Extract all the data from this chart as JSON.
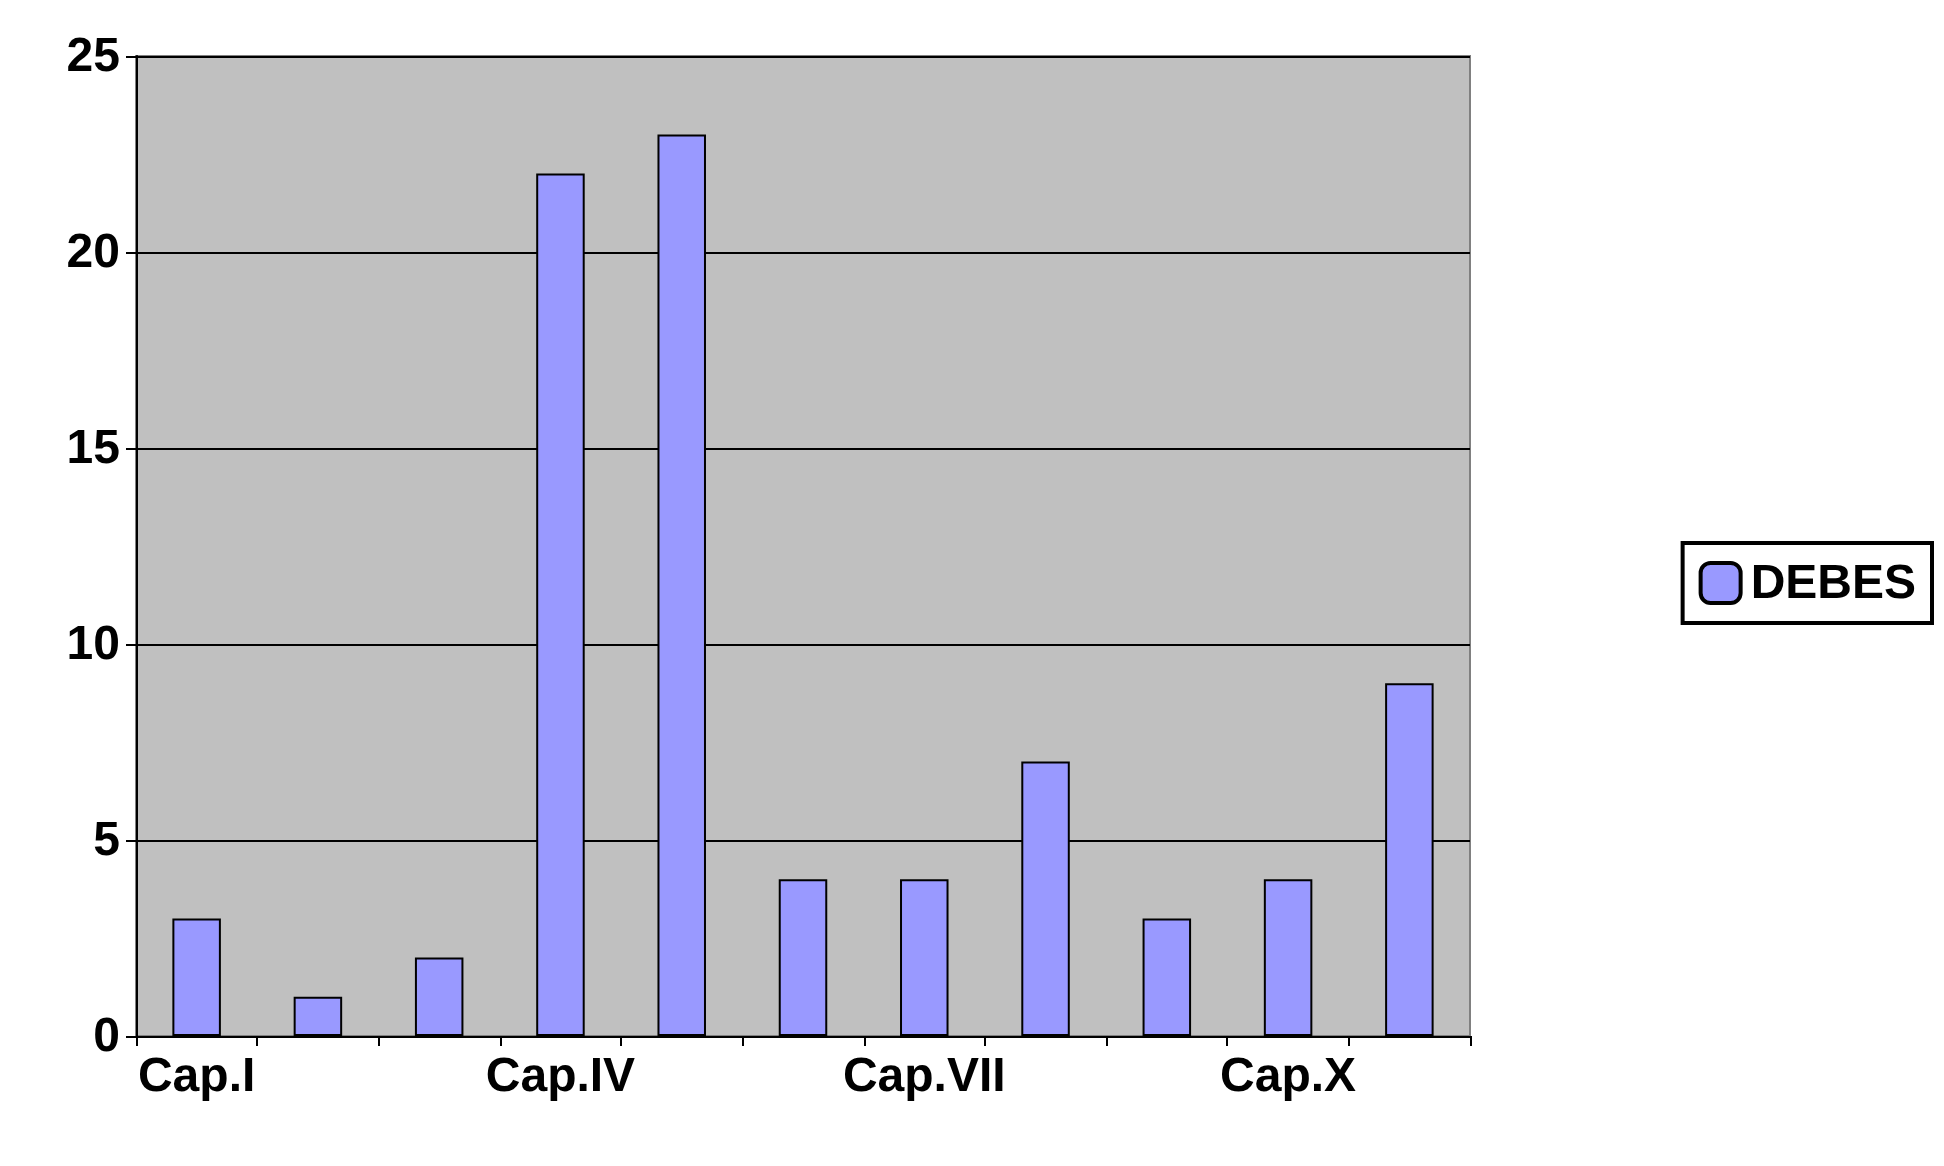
{
  "chart_data": {
    "type": "bar",
    "categories": [
      "Cap.I",
      null,
      null,
      "Cap.IV",
      null,
      null,
      "Cap.VII",
      null,
      null,
      "Cap.X",
      null
    ],
    "series": [
      {
        "name": "DEBES",
        "color": "#9999ff",
        "values": [
          3,
          1,
          2,
          22,
          23,
          4,
          4,
          7,
          3,
          4,
          9
        ]
      }
    ],
    "ylim": [
      0,
      25
    ],
    "yticks": [
      0,
      5,
      10,
      15,
      20,
      25
    ],
    "grid": "y",
    "legend": "right"
  }
}
